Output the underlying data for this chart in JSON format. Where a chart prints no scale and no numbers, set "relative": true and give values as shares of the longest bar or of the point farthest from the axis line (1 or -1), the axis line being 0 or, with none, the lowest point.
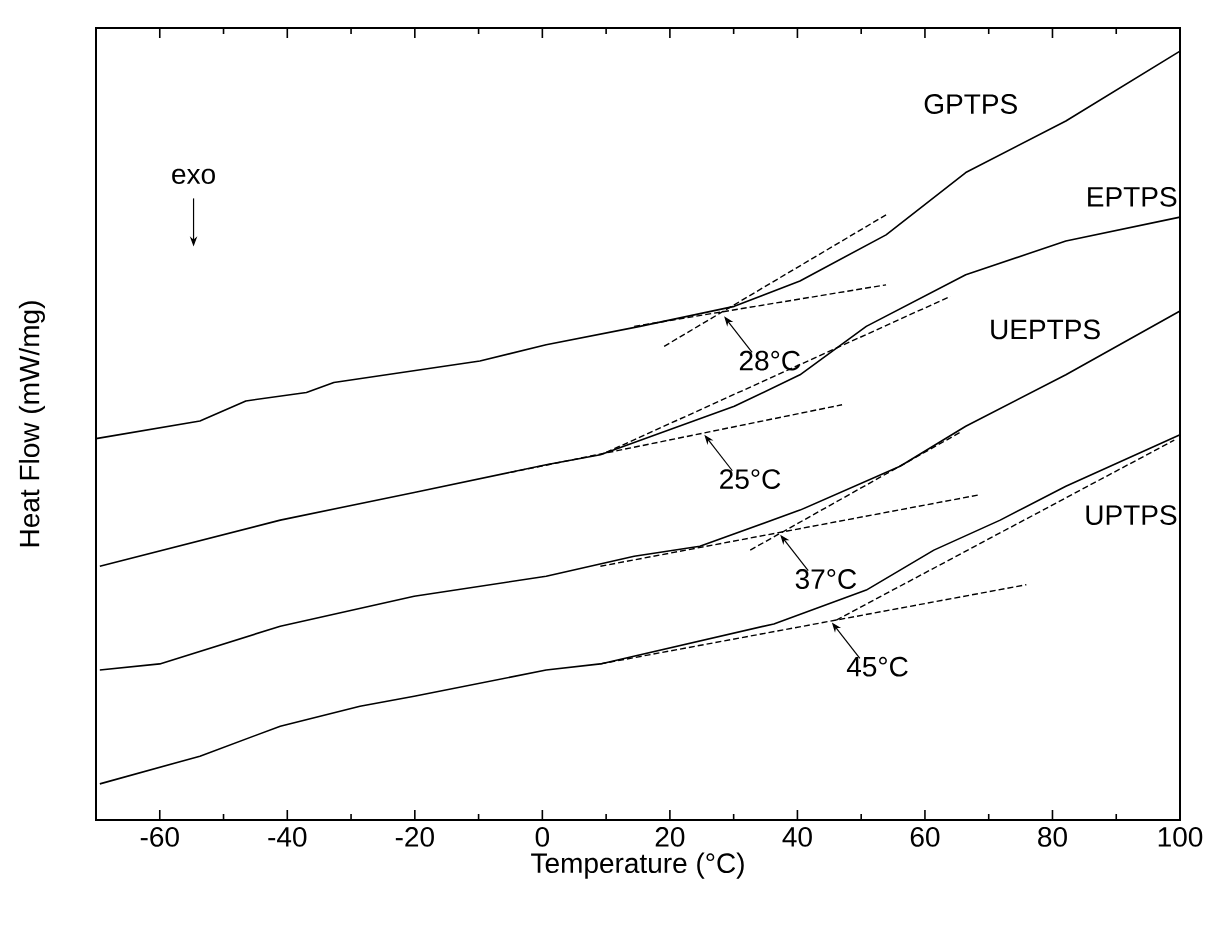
{
  "chart_data": {
    "type": "line",
    "xlabel": "Temperature (°C)",
    "ylabel": "Heat Flow (mW/mg)",
    "relative": true,
    "xlim": [
      -70,
      100
    ],
    "xticks": [
      -60,
      -40,
      -20,
      0,
      20,
      40,
      60,
      80,
      100
    ],
    "tick_labels": "x",
    "grid": false,
    "marker": "none",
    "line_style": "solid",
    "series": [
      {
        "name": "GPTPS",
        "color": "#000000",
        "x": [
          -70,
          -53.7,
          -46.5,
          -37,
          -32.7,
          -9.8,
          0.6,
          15.3,
          30.1,
          40.4,
          53.9,
          66.4,
          82.1,
          100
        ],
        "values": [
          0.496,
          0.519,
          0.545,
          0.556,
          0.569,
          0.597,
          0.618,
          0.642,
          0.668,
          0.701,
          0.761,
          0.842,
          0.909,
          1
        ]
      },
      {
        "name": "EPTPS",
        "color": "#000000",
        "x": [
          -69.4,
          -41.1,
          -20.1,
          0.6,
          9.1,
          30.1,
          40.4,
          50.8,
          66.4,
          82.1,
          100
        ],
        "values": [
          0.33,
          0.39,
          0.426,
          0.462,
          0.475,
          0.538,
          0.579,
          0.642,
          0.709,
          0.753,
          0.784
        ]
      },
      {
        "name": "UEPTPS",
        "color": "#000000",
        "x": [
          -69.4,
          -60,
          -41.1,
          -20.1,
          0.6,
          14.4,
          24.7,
          40.4,
          56.1,
          66.4,
          82.1,
          100
        ],
        "values": [
          0.195,
          0.203,
          0.252,
          0.291,
          0.317,
          0.343,
          0.356,
          0.403,
          0.46,
          0.512,
          0.579,
          0.662
        ]
      },
      {
        "name": "UPTPS",
        "color": "#000000",
        "x": [
          -69.4,
          -53.7,
          -41.1,
          -28.6,
          -20.1,
          0.6,
          9.1,
          36.3,
          50.8,
          61.4,
          71.8,
          82.1,
          100
        ],
        "values": [
          0.047,
          0.083,
          0.122,
          0.148,
          0.161,
          0.195,
          0.203,
          0.255,
          0.299,
          0.351,
          0.39,
          0.434,
          0.501
        ]
      },
      {
        "color": "#000000",
        "line_style": "dashed",
        "x": [
          14.4,
          53.9
        ],
        "values": [
          0.642,
          0.696
        ]
      },
      {
        "color": "#000000",
        "line_style": "dashed",
        "x": [
          19.1,
          53.9
        ],
        "values": [
          0.616,
          0.787
        ]
      },
      {
        "color": "#000000",
        "line_style": "dashed",
        "x": [
          -5,
          47
        ],
        "values": [
          0.452,
          0.54
        ]
      },
      {
        "color": "#000000",
        "line_style": "dashed",
        "x": [
          10,
          64
        ],
        "values": [
          0.478,
          0.681
        ]
      },
      {
        "color": "#000000",
        "line_style": "dashed",
        "x": [
          9.1,
          68.6
        ],
        "values": [
          0.33,
          0.423
        ]
      },
      {
        "color": "#000000",
        "line_style": "dashed",
        "x": [
          32.6,
          65.5
        ],
        "values": [
          0.351,
          0.504
        ]
      },
      {
        "color": "#000000",
        "line_style": "dashed",
        "x": [
          9.1,
          75.9
        ],
        "values": [
          0.203,
          0.306
        ]
      },
      {
        "color": "#000000",
        "line_style": "dashed",
        "x": [
          46.1,
          99.1
        ],
        "values": [
          0.26,
          0.494
        ]
      }
    ],
    "annotations": [
      "exo",
      {
        "text": "28°C",
        "x": 28.5,
        "y": 0.655
      },
      {
        "text": "25°C",
        "x": 25.4,
        "y": 0.501
      },
      {
        "text": "37°C",
        "x": 37.3,
        "y": 0.371
      },
      {
        "text": "45°C",
        "x": 45.4,
        "y": 0.257
      }
    ]
  }
}
